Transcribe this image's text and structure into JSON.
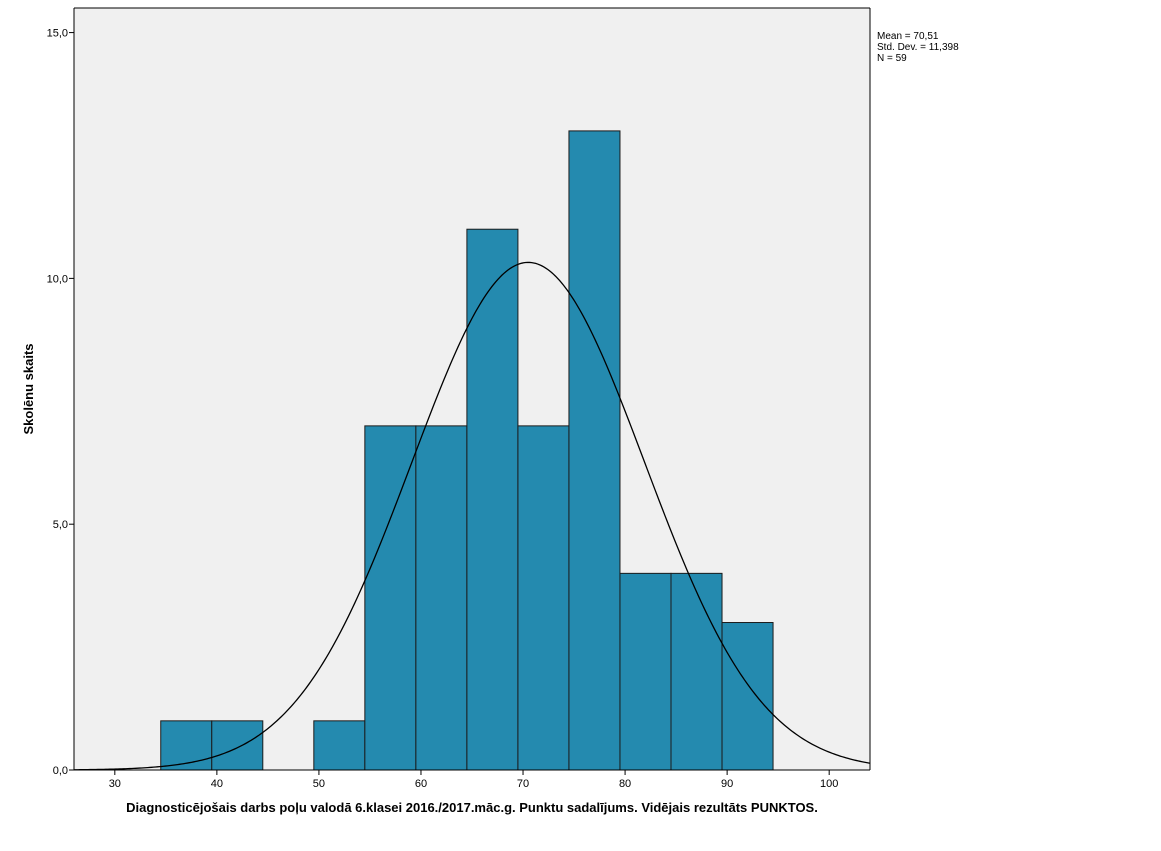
{
  "chart_data": {
    "type": "bar",
    "subtype": "histogram",
    "title": "",
    "xlabel": "Diagnosticējošais darbs poļu valodā 6.klasei 2016./2017.māc.g. Punktu sadalījums. Vidējais rezultāts PUNKTOS.",
    "ylabel": "Skolēnu skaits",
    "xlim": [
      26,
      104
    ],
    "ylim": [
      0,
      15.5
    ],
    "x_ticks": [
      30,
      40,
      50,
      60,
      70,
      80,
      90,
      100
    ],
    "x_tick_labels": [
      "30",
      "40",
      "50",
      "60",
      "70",
      "80",
      "90",
      "100"
    ],
    "y_ticks": [
      0,
      5,
      10,
      15
    ],
    "y_tick_labels": [
      "0,0",
      "5,0",
      "10,0",
      "15,0"
    ],
    "bin_width": 5,
    "bins": [
      {
        "start": 34.5,
        "end": 39.5,
        "count": 1
      },
      {
        "start": 39.5,
        "end": 44.5,
        "count": 1
      },
      {
        "start": 49.5,
        "end": 54.5,
        "count": 1
      },
      {
        "start": 54.5,
        "end": 59.5,
        "count": 7
      },
      {
        "start": 59.5,
        "end": 64.5,
        "count": 7
      },
      {
        "start": 64.5,
        "end": 69.5,
        "count": 11
      },
      {
        "start": 69.5,
        "end": 74.5,
        "count": 7
      },
      {
        "start": 74.5,
        "end": 79.5,
        "count": 13
      },
      {
        "start": 79.5,
        "end": 84.5,
        "count": 4
      },
      {
        "start": 84.5,
        "end": 89.5,
        "count": 4
      },
      {
        "start": 89.5,
        "end": 94.5,
        "count": 3
      }
    ],
    "normal_curve": {
      "mean": 70.51,
      "std_dev": 11.398,
      "n": 59
    },
    "stats_text": [
      "Mean = 70,51",
      "Std. Dev. = 11,398",
      "N = 59"
    ],
    "grid": false,
    "legend": "none",
    "colors": {
      "bar_fill": "#248aaf",
      "bar_stroke": "#1b1b1b",
      "plot_background": "#f0f0f0",
      "curve": "#000000"
    }
  }
}
